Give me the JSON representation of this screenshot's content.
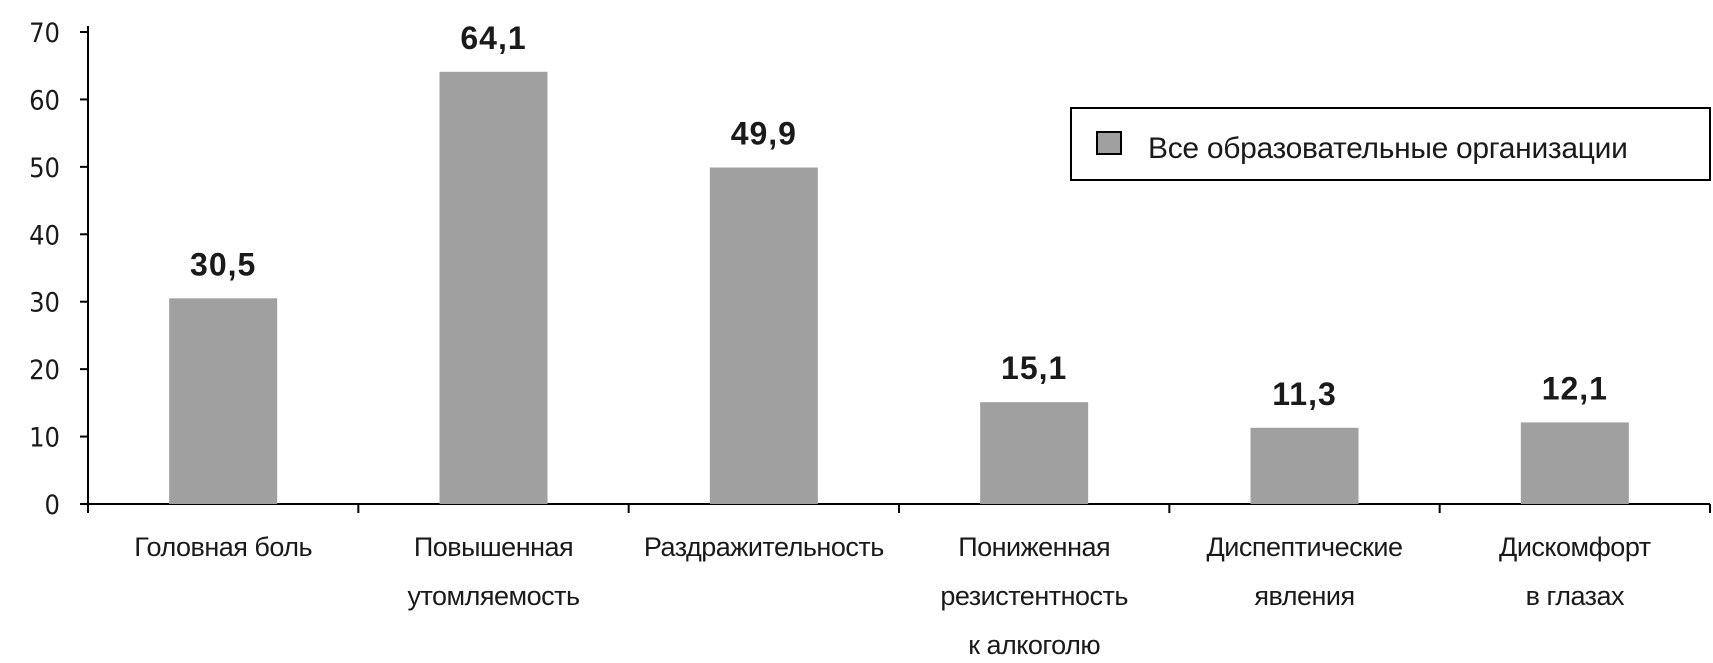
{
  "chart_data": {
    "type": "bar",
    "categories": [
      [
        "Головная боль"
      ],
      [
        "Повышенная",
        "утомляемость"
      ],
      [
        "Раздражительность"
      ],
      [
        "Пониженная",
        "резистентность",
        "к алкоголю"
      ],
      [
        "Диспептические",
        "явления"
      ],
      [
        "Дискомфорт",
        "в глазах"
      ]
    ],
    "series": [
      {
        "name": "Все образовательные организации",
        "values": [
          30.5,
          64.1,
          49.9,
          15.1,
          11.3,
          12.1
        ],
        "labels": [
          "30,5",
          "64,1",
          "49,9",
          "15,1",
          "11,3",
          "12,1"
        ],
        "color": "#a0a0a0"
      }
    ],
    "ylim": [
      0,
      70
    ],
    "yticks": [
      0,
      10,
      20,
      30,
      40,
      50,
      60,
      70
    ],
    "legend_position": "top-right",
    "grid": false
  }
}
